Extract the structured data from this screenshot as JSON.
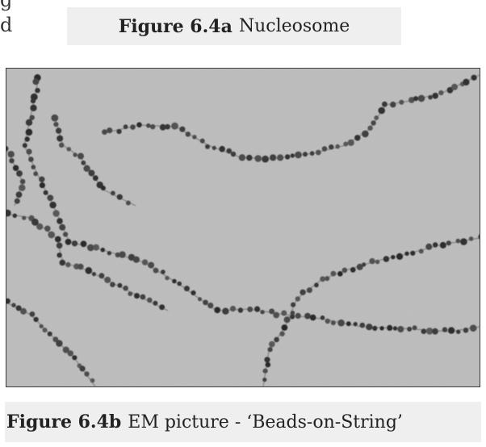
{
  "cut_text": {
    "line_1": "g",
    "line_2": "d"
  },
  "figure_a": {
    "number": "Figure 6.4a",
    "title": "Nucleosome"
  },
  "figure_b": {
    "number": "Figure 6.4b",
    "title": "EM picture - ‘Beads-on-String’"
  },
  "photo": {
    "description_icon": "em-micrograph-image"
  }
}
